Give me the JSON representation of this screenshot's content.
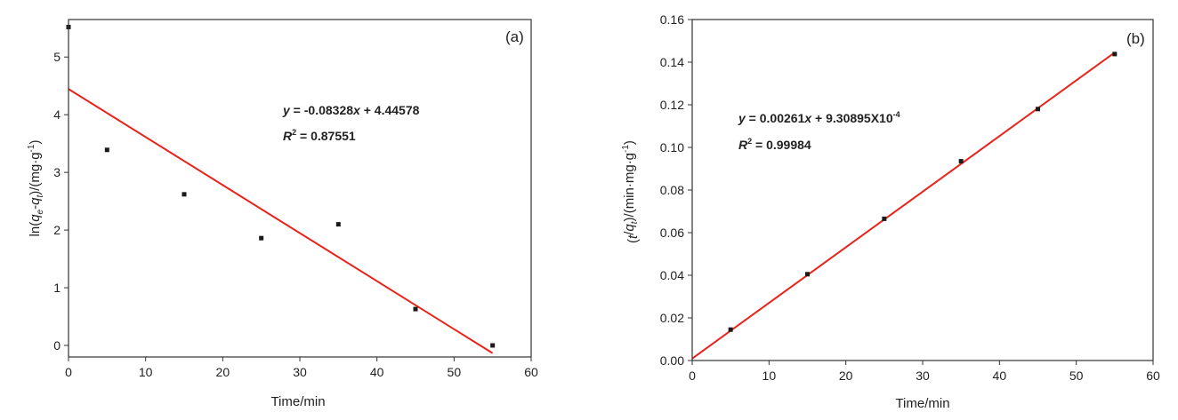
{
  "chart_data": [
    {
      "type": "scatter",
      "panel_label": "(a)",
      "xlabel": "Time/min",
      "ylabel": {
        "prefix": "ln(",
        "q1": "q",
        "sub1": "e",
        "dash": "-",
        "q2": "q",
        "sub2": "t",
        "suffix": ")/(mg·g",
        "sup": "-1",
        "close": ")"
      },
      "xlim": [
        0,
        60
      ],
      "ylim": [
        -0.2,
        5.65
      ],
      "xticks": [
        0,
        10,
        20,
        30,
        40,
        50,
        60
      ],
      "yticks": [
        0,
        1,
        2,
        3,
        4,
        5
      ],
      "ytick_labels": [
        "0",
        "1",
        "2",
        "3",
        "4",
        "5"
      ],
      "points": {
        "x": [
          0,
          5,
          15,
          25,
          35,
          45,
          55
        ],
        "y": [
          5.52,
          3.39,
          2.62,
          1.86,
          2.1,
          0.63,
          0.0
        ]
      },
      "fit_line": {
        "slope": -0.08328,
        "intercept": 4.44578,
        "x_range": [
          0,
          55
        ]
      },
      "equation": {
        "y": "y",
        "eq_mid": " = -0.08328",
        "x": "x",
        "eq_end": " + 4.44578"
      },
      "r2": {
        "r": "R",
        "sup": "2",
        "value": " = 0.87551"
      },
      "colors": {
        "points": "#1a1a1a",
        "line": "#e8231a",
        "axes": "#333333"
      },
      "grid": false
    },
    {
      "type": "scatter",
      "panel_label": "(b)",
      "xlabel": "Time/min",
      "ylabel": {
        "prefix": "(",
        "q1": "t",
        "sub1": "",
        "dash": "/",
        "q2": "q",
        "sub2": "t",
        "suffix": ")/(min·mg·g",
        "sup": "-1",
        "close": ")"
      },
      "xlim": [
        0,
        60
      ],
      "ylim": [
        0,
        0.16
      ],
      "xticks": [
        0,
        10,
        20,
        30,
        40,
        50,
        60
      ],
      "yticks": [
        0,
        0.02,
        0.04,
        0.06,
        0.08,
        0.1,
        0.12,
        0.14,
        0.16
      ],
      "ytick_labels": [
        "0.00",
        "0.02",
        "0.04",
        "0.06",
        "0.08",
        "0.10",
        "0.12",
        "0.14",
        "0.16"
      ],
      "points": {
        "x": [
          5,
          15,
          25,
          35,
          45,
          55
        ],
        "y": [
          0.0145,
          0.0405,
          0.0665,
          0.0935,
          0.118,
          0.1438
        ]
      },
      "fit_line": {
        "slope": 0.00261,
        "intercept": 0.000930895,
        "x_range": [
          0,
          55
        ]
      },
      "equation": {
        "y": "y",
        "eq_mid": " = 0.00261",
        "x": "x",
        "eq_end": " + 9.30895X10",
        "eq_sup": "-4"
      },
      "r2": {
        "r": "R",
        "sup": "2",
        "value": " = 0.99984"
      },
      "colors": {
        "points": "#1a1a1a",
        "line": "#e8231a",
        "axes": "#333333"
      },
      "grid": false
    }
  ]
}
